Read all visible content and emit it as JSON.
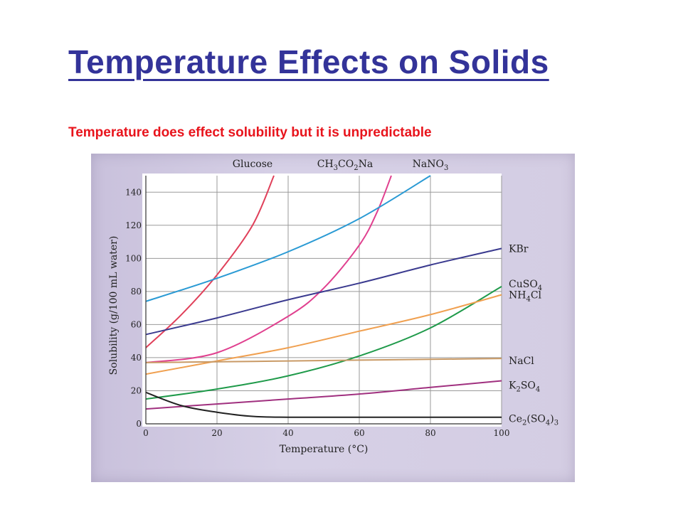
{
  "slide": {
    "title": "Temperature Effects on Solids",
    "subtitle": "Temperature does effect solubility but it is unpredictable"
  },
  "colors": {
    "title": "#333399",
    "subtitle": "#e8141c",
    "photo_background": "#d4cde3",
    "plot_background": "#ffffff",
    "grid": "#9a9a9a"
  },
  "chart_data": {
    "type": "line",
    "title": "",
    "xlabel": "Temperature (°C)",
    "ylabel": "Solubility (g/100 mL water)",
    "xlim": [
      0,
      100
    ],
    "ylim": [
      0,
      150
    ],
    "xticks": [
      0,
      20,
      40,
      60,
      80,
      100
    ],
    "yticks": [
      0,
      20,
      40,
      60,
      80,
      100,
      120,
      140
    ],
    "grid": true,
    "series": [
      {
        "name": "Glucose",
        "label_parts": [
          [
            "Glucose",
            ""
          ]
        ],
        "label_position": "top",
        "color": "#e0405a",
        "x": [
          0,
          10,
          20,
          30,
          36
        ],
        "y": [
          46,
          66,
          90,
          120,
          150
        ]
      },
      {
        "name": "CH3CO2Na",
        "label_parts": [
          [
            "CH",
            ""
          ],
          [
            "3",
            "sub"
          ],
          [
            "CO",
            ""
          ],
          [
            "2",
            "sub"
          ],
          [
            "Na",
            ""
          ]
        ],
        "label_position": "top",
        "color": "#e0408f",
        "x": [
          0,
          20,
          40,
          50,
          60,
          65,
          69
        ],
        "y": [
          37,
          43,
          65,
          82,
          108,
          128,
          150
        ]
      },
      {
        "name": "NaNO3",
        "label_parts": [
          [
            "NaNO",
            ""
          ],
          [
            "3",
            "sub"
          ]
        ],
        "label_position": "top",
        "color": "#2a9ad4",
        "x": [
          0,
          20,
          40,
          60,
          80
        ],
        "y": [
          74,
          88,
          104,
          124,
          150
        ]
      },
      {
        "name": "KBr",
        "label_parts": [
          [
            "KBr",
            ""
          ]
        ],
        "label_position": "right",
        "color": "#3a3a8f",
        "x": [
          0,
          20,
          40,
          60,
          80,
          100
        ],
        "y": [
          54,
          64,
          75,
          85,
          96,
          106
        ]
      },
      {
        "name": "CuSO4",
        "label_parts": [
          [
            "CuSO",
            ""
          ],
          [
            "4",
            "sub"
          ]
        ],
        "label_position": "right",
        "color": "#1f9a4a",
        "x": [
          0,
          20,
          40,
          60,
          80,
          100
        ],
        "y": [
          15,
          21,
          29,
          41,
          58,
          83
        ]
      },
      {
        "name": "NH4Cl",
        "label_parts": [
          [
            "NH",
            ""
          ],
          [
            "4",
            "sub"
          ],
          [
            "Cl",
            ""
          ]
        ],
        "label_position": "right",
        "color": "#f0a050",
        "x": [
          0,
          20,
          40,
          60,
          80,
          100
        ],
        "y": [
          30,
          38,
          46,
          56,
          66,
          78
        ]
      },
      {
        "name": "NaCl",
        "label_parts": [
          [
            "NaCl",
            ""
          ]
        ],
        "label_position": "right",
        "color": "#c99a66",
        "x": [
          0,
          20,
          40,
          60,
          80,
          100
        ],
        "y": [
          37,
          37.5,
          38,
          38.5,
          39,
          39.5
        ]
      },
      {
        "name": "K2SO4",
        "label_parts": [
          [
            "K",
            ""
          ],
          [
            "2",
            "sub"
          ],
          [
            "SO",
            ""
          ],
          [
            "4",
            "sub"
          ]
        ],
        "label_position": "right",
        "color": "#a0307f",
        "x": [
          0,
          20,
          40,
          60,
          80,
          100
        ],
        "y": [
          9,
          12,
          15,
          18,
          22,
          26
        ]
      },
      {
        "name": "Ce2(SO4)3",
        "label_parts": [
          [
            "Ce",
            ""
          ],
          [
            "2",
            "sub"
          ],
          [
            "(SO",
            ""
          ],
          [
            "4",
            "sub"
          ],
          [
            ")",
            ""
          ],
          [
            "3",
            "sub"
          ]
        ],
        "label_position": "right",
        "color": "#222222",
        "x": [
          0,
          10,
          20,
          30,
          40,
          60,
          80,
          100
        ],
        "y": [
          19,
          11,
          7,
          4.5,
          4,
          4,
          4,
          4
        ]
      }
    ]
  }
}
